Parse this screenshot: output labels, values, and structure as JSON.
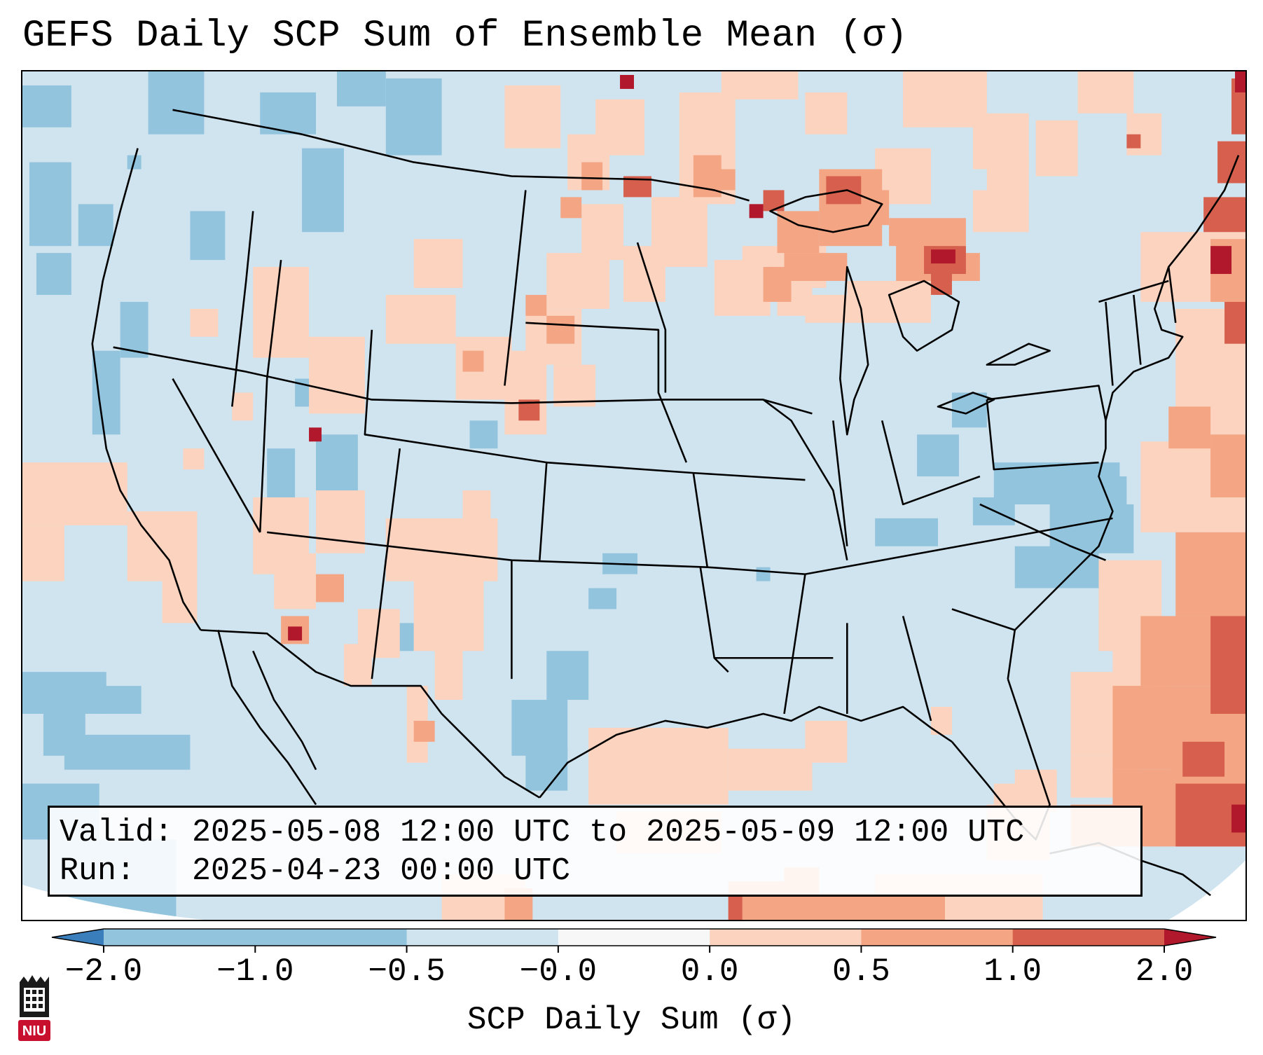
{
  "title": "GEFS Daily SCP Sum of Ensemble Mean (σ)",
  "info": {
    "valid_label": "Valid:",
    "valid_value": "2025-05-08 12:00 UTC to 2025-05-09 12:00 UTC",
    "run_label": "Run:",
    "run_value": "2025-04-23 00:00 UTC"
  },
  "colorbar": {
    "label": "SCP Daily Sum (σ)",
    "ticks": [
      "−2.0",
      "−1.0",
      "−0.5",
      "−0.0",
      "0.0",
      "0.5",
      "1.0",
      "2.0"
    ],
    "colors": [
      "#3a7fbb",
      "#92c4de",
      "#d0e4ef",
      "#f7f7f7",
      "#fbd3bf",
      "#f4a583",
      "#d6604d",
      "#b2182b"
    ],
    "extend": "both"
  },
  "map": {
    "region": "Contiguous United States",
    "background_color": "#d0e4ef",
    "state_borders": true,
    "coastlines": true
  },
  "logo": {
    "text": "NIU",
    "color": "#c8102e"
  }
}
